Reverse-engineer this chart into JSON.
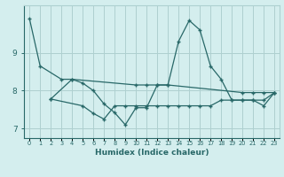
{
  "xlabel": "Humidex (Indice chaleur)",
  "x_values": [
    0,
    1,
    2,
    3,
    4,
    5,
    6,
    7,
    8,
    9,
    10,
    11,
    12,
    13,
    14,
    15,
    16,
    17,
    18,
    19,
    20,
    21,
    22,
    23
  ],
  "line1_x": [
    0,
    1,
    3,
    4,
    10,
    11,
    12,
    13,
    20,
    21,
    22,
    23
  ],
  "line1_y": [
    9.9,
    8.65,
    8.3,
    8.3,
    8.15,
    8.15,
    8.15,
    8.15,
    7.95,
    7.95,
    7.95,
    7.95
  ],
  "line2_x": [
    2,
    4,
    5,
    6,
    7,
    8,
    9,
    10,
    11,
    12,
    13,
    14,
    15,
    16,
    17,
    18,
    19,
    20,
    21,
    22,
    23
  ],
  "line2_y": [
    7.78,
    8.3,
    8.2,
    8.0,
    7.65,
    7.42,
    7.1,
    7.55,
    7.55,
    8.15,
    8.15,
    9.3,
    9.85,
    9.6,
    8.65,
    8.3,
    7.75,
    7.75,
    7.75,
    7.75,
    7.95
  ],
  "line3_x": [
    2,
    5,
    6,
    7,
    8,
    9,
    10,
    11,
    12,
    13,
    14,
    15,
    16,
    17,
    18,
    19,
    20,
    21,
    22,
    23
  ],
  "line3_y": [
    7.78,
    7.6,
    7.4,
    7.25,
    7.6,
    7.6,
    7.6,
    7.6,
    7.6,
    7.6,
    7.6,
    7.6,
    7.6,
    7.6,
    7.75,
    7.75,
    7.75,
    7.75,
    7.6,
    7.95
  ],
  "line_color": "#286868",
  "bg_color": "#d4eeee",
  "grid_color": "#aed0d0",
  "ylim": [
    6.75,
    10.25
  ],
  "yticks": [
    7,
    8,
    9
  ],
  "xlim": [
    -0.5,
    23.5
  ]
}
